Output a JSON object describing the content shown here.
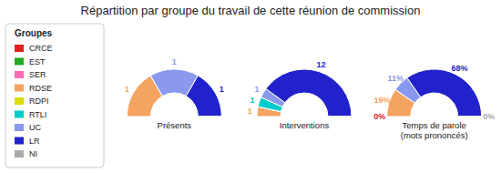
{
  "chart_data": {
    "type": "pie",
    "title": "Répartition par groupe du travail de cette réunion de commission",
    "categories": [
      "CRCE",
      "EST",
      "SER",
      "RDSE",
      "RDPI",
      "RTLI",
      "UC",
      "LR",
      "NI"
    ],
    "colors": [
      "#e02020",
      "#22aa22",
      "#ff69b4",
      "#f4a460",
      "#dddd00",
      "#00cccc",
      "#8899ee",
      "#2222cc",
      "#aaaaaa"
    ],
    "series": [
      {
        "name": "Présents",
        "values": [
          0,
          0,
          0,
          1,
          0,
          0,
          1,
          1,
          0
        ],
        "value_labels": [
          null,
          null,
          null,
          "1",
          null,
          null,
          "1",
          "1",
          null
        ]
      },
      {
        "name": "Interventions",
        "values": [
          0,
          0,
          0,
          1,
          0,
          1,
          1,
          12,
          0
        ],
        "value_labels": [
          null,
          null,
          null,
          "1",
          null,
          "1",
          "1",
          "12",
          null
        ]
      },
      {
        "name": "Temps de parole\n(mots prononcés)",
        "values": [
          0,
          0,
          0,
          19,
          0,
          0,
          11,
          68,
          0
        ],
        "value_labels": [
          "0%",
          null,
          null,
          "19%",
          null,
          null,
          "11%",
          "68%",
          "0%"
        ]
      }
    ],
    "data_labels": true,
    "legend": "left",
    "legend_title": "Groupes"
  }
}
